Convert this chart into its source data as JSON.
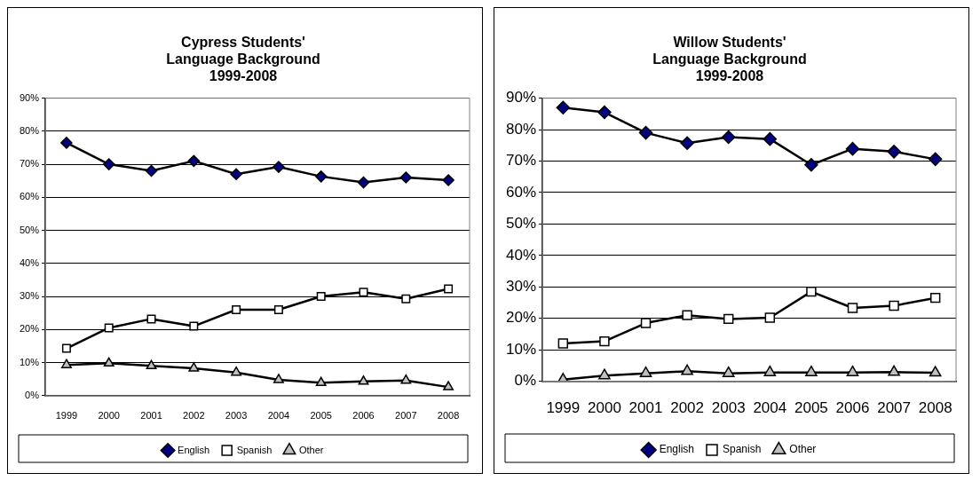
{
  "chart_data": [
    {
      "type": "line",
      "title": "Cypress Students'\nLanguage Background\n1999-2008",
      "categories": [
        "1999",
        "2000",
        "2001",
        "2002",
        "2003",
        "2004",
        "2005",
        "2006",
        "2007",
        "2008"
      ],
      "series": [
        {
          "name": "English",
          "color": "#000080",
          "marker": "diamond",
          "values": [
            76.5,
            70,
            68,
            71,
            67,
            69.2,
            66.3,
            64.5,
            66,
            65.2
          ]
        },
        {
          "name": "Spanish",
          "color": "#ffffff",
          "marker": "square",
          "values": [
            14.3,
            20.5,
            23.2,
            21,
            26,
            26,
            30,
            31.3,
            29.3,
            32.3
          ]
        },
        {
          "name": "Other",
          "color": "#c0c0c0",
          "marker": "triangle",
          "values": [
            9.3,
            9.8,
            9,
            8.3,
            7,
            4.8,
            3.9,
            4.3,
            4.6,
            2.6
          ]
        }
      ],
      "ylim": [
        0,
        90
      ],
      "yticks": [
        {
          "value": 0,
          "label": "0%"
        },
        {
          "value": 10,
          "label": "10%"
        },
        {
          "value": 20,
          "label": "20%"
        },
        {
          "value": 30,
          "label": "30%"
        },
        {
          "value": 40,
          "label": "40%"
        },
        {
          "value": 50,
          "label": "50%"
        },
        {
          "value": 60,
          "label": "60%"
        },
        {
          "value": 70,
          "label": "70%"
        },
        {
          "value": 80,
          "label": "80%"
        },
        {
          "value": 90,
          "label": "90%"
        }
      ],
      "grid": "y",
      "legend": "bottom"
    },
    {
      "type": "line",
      "title": "Willow Students'\nLanguage Background\n1999-2008",
      "categories": [
        "1999",
        "2000",
        "2001",
        "2002",
        "2003",
        "2004",
        "2005",
        "2006",
        "2007",
        "2008"
      ],
      "series": [
        {
          "name": "English",
          "color": "#000080",
          "marker": "diamond",
          "values": [
            87,
            85.5,
            79,
            75.7,
            77.6,
            77,
            68.8,
            73.9,
            73,
            70.6
          ]
        },
        {
          "name": "Spanish",
          "color": "#ffffff",
          "marker": "square",
          "values": [
            12,
            12.7,
            18.5,
            21,
            19.8,
            20.2,
            28.5,
            23.3,
            24,
            26.5
          ]
        },
        {
          "name": "Other",
          "color": "#c0c0c0",
          "marker": "triangle",
          "values": [
            0.5,
            1.8,
            2.5,
            3.2,
            2.5,
            2.8,
            2.8,
            2.8,
            2.9,
            2.7
          ]
        }
      ],
      "ylim": [
        0,
        90
      ],
      "yticks": [
        {
          "value": 0,
          "label": "0%"
        },
        {
          "value": 10,
          "label": "10%"
        },
        {
          "value": 20,
          "label": "20%"
        },
        {
          "value": 30,
          "label": "30%"
        },
        {
          "value": 40,
          "label": "40%"
        },
        {
          "value": 50,
          "label": "50%"
        },
        {
          "value": 60,
          "label": "60%"
        },
        {
          "value": 70,
          "label": "70%"
        },
        {
          "value": 80,
          "label": "80%"
        },
        {
          "value": 90,
          "label": "90%"
        }
      ],
      "grid": "y",
      "legend": "bottom"
    }
  ]
}
